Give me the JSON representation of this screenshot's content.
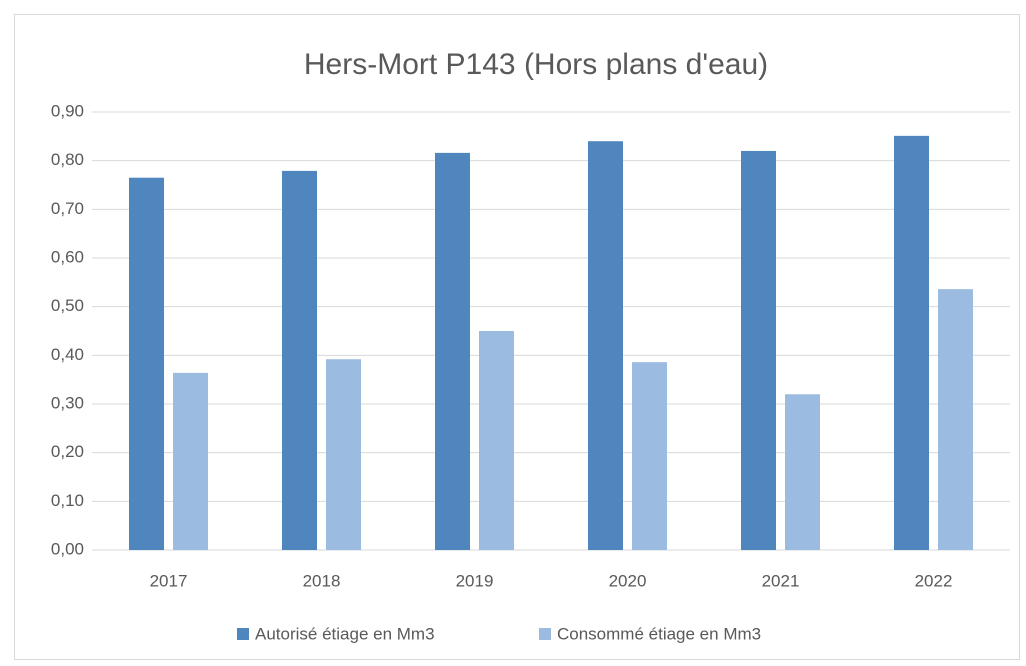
{
  "chart_data": {
    "type": "bar",
    "title": "Hers-Mort P143 (Hors plans d'eau)",
    "categories": [
      "2017",
      "2018",
      "2019",
      "2020",
      "2021",
      "2022"
    ],
    "series": [
      {
        "name": "Autorisé étiage en Mm3",
        "color": "#4f86be",
        "values": [
          0.765,
          0.779,
          0.816,
          0.84,
          0.82,
          0.851
        ]
      },
      {
        "name": "Consommé étiage en Mm3",
        "color": "#9bbbe0",
        "values": [
          0.364,
          0.392,
          0.45,
          0.386,
          0.32,
          0.536
        ]
      }
    ],
    "ylim": [
      0,
      0.9
    ],
    "yticks": [
      {
        "value": 0,
        "label": "0,00"
      },
      {
        "value": 0.1,
        "label": "0,10"
      },
      {
        "value": 0.2,
        "label": "0,20"
      },
      {
        "value": 0.3,
        "label": "0,30"
      },
      {
        "value": 0.4,
        "label": "0,40"
      },
      {
        "value": 0.5,
        "label": "0,50"
      },
      {
        "value": 0.6,
        "label": "0,60"
      },
      {
        "value": 0.7,
        "label": "0,70"
      },
      {
        "value": 0.8,
        "label": "0,80"
      },
      {
        "value": 0.9,
        "label": "0,90"
      }
    ],
    "grid": true,
    "legend": "bottom"
  }
}
